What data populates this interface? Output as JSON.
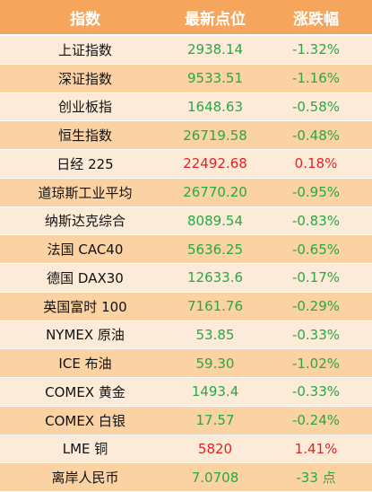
{
  "table": {
    "columns": [
      "指数",
      "最新点位",
      "涨跌幅"
    ],
    "header_color": "#f5a55c",
    "row_colors": [
      "#fdebd9",
      "#fbd2a4"
    ],
    "rows": [
      [
        "上证指数",
        "2938.14",
        "-1.32%"
      ],
      [
        "深证指数",
        "9533.51",
        "-1.16%"
      ],
      [
        "创业板指",
        "1648.63",
        "-0.58%"
      ],
      [
        "恒生指数",
        "26719.58",
        "-0.48%"
      ],
      [
        "日经 225",
        "22492.68",
        "0.18%"
      ],
      [
        "道琼斯工业平均",
        "26770.20",
        "-0.95%"
      ],
      [
        "纳斯达克综合",
        "8089.54",
        "-0.83%"
      ],
      [
        "法国 CAC40",
        "5636.25",
        "-0.65%"
      ],
      [
        "德国 DAX30",
        "12633.6",
        "-0.17%"
      ],
      [
        "英国富时 100",
        "7161.76",
        "-0.29%"
      ],
      [
        "NYMEX 原油",
        "53.85",
        "-0.33%"
      ],
      [
        "ICE 布油",
        "59.30",
        "-1.02%"
      ],
      [
        "COMEX 黄金",
        "1493.4",
        "-0.33%"
      ],
      [
        "COMEX 白银",
        "17.57",
        "-0.24%"
      ],
      [
        "LME 铜",
        "5820",
        "1.41%"
      ],
      [
        "离岸人民币",
        "7.0708",
        "-33 点"
      ]
    ],
    "value_colors": [
      "#27a845",
      "#27a845",
      "#27a845",
      "#27a845",
      "#e02424",
      "#27a845",
      "#27a845",
      "#27a845",
      "#27a845",
      "#27a845",
      "#27a845",
      "#27a845",
      "#27a845",
      "#27a845",
      "#e02424",
      "#27a845"
    ]
  }
}
